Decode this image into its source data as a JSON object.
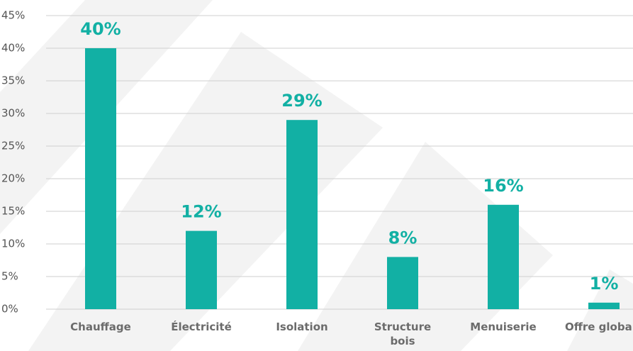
{
  "chart_data": {
    "type": "bar",
    "categories": [
      "Chauffage",
      "Électricité",
      "Isolation",
      "Structure bois",
      "Menuiserie",
      "Offre globale"
    ],
    "values": [
      40,
      12,
      29,
      8,
      16,
      1
    ],
    "value_labels": [
      "40%",
      "12%",
      "29%",
      "8%",
      "16%",
      "1%"
    ],
    "color": "#12b0a4",
    "ylim": [
      0,
      45
    ],
    "yticks": [
      {
        "value": 0,
        "label": "0%"
      },
      {
        "value": 5,
        "label": "5%"
      },
      {
        "value": 10,
        "label": "10%"
      },
      {
        "value": 15,
        "label": "15%"
      },
      {
        "value": 20,
        "label": "20%"
      },
      {
        "value": 25,
        "label": "25%"
      },
      {
        "value": 30,
        "label": "30%"
      },
      {
        "value": 35,
        "label": "35%"
      },
      {
        "value": 40,
        "label": "40%"
      },
      {
        "value": 45,
        "label": "45%"
      }
    ],
    "grid": true
  }
}
